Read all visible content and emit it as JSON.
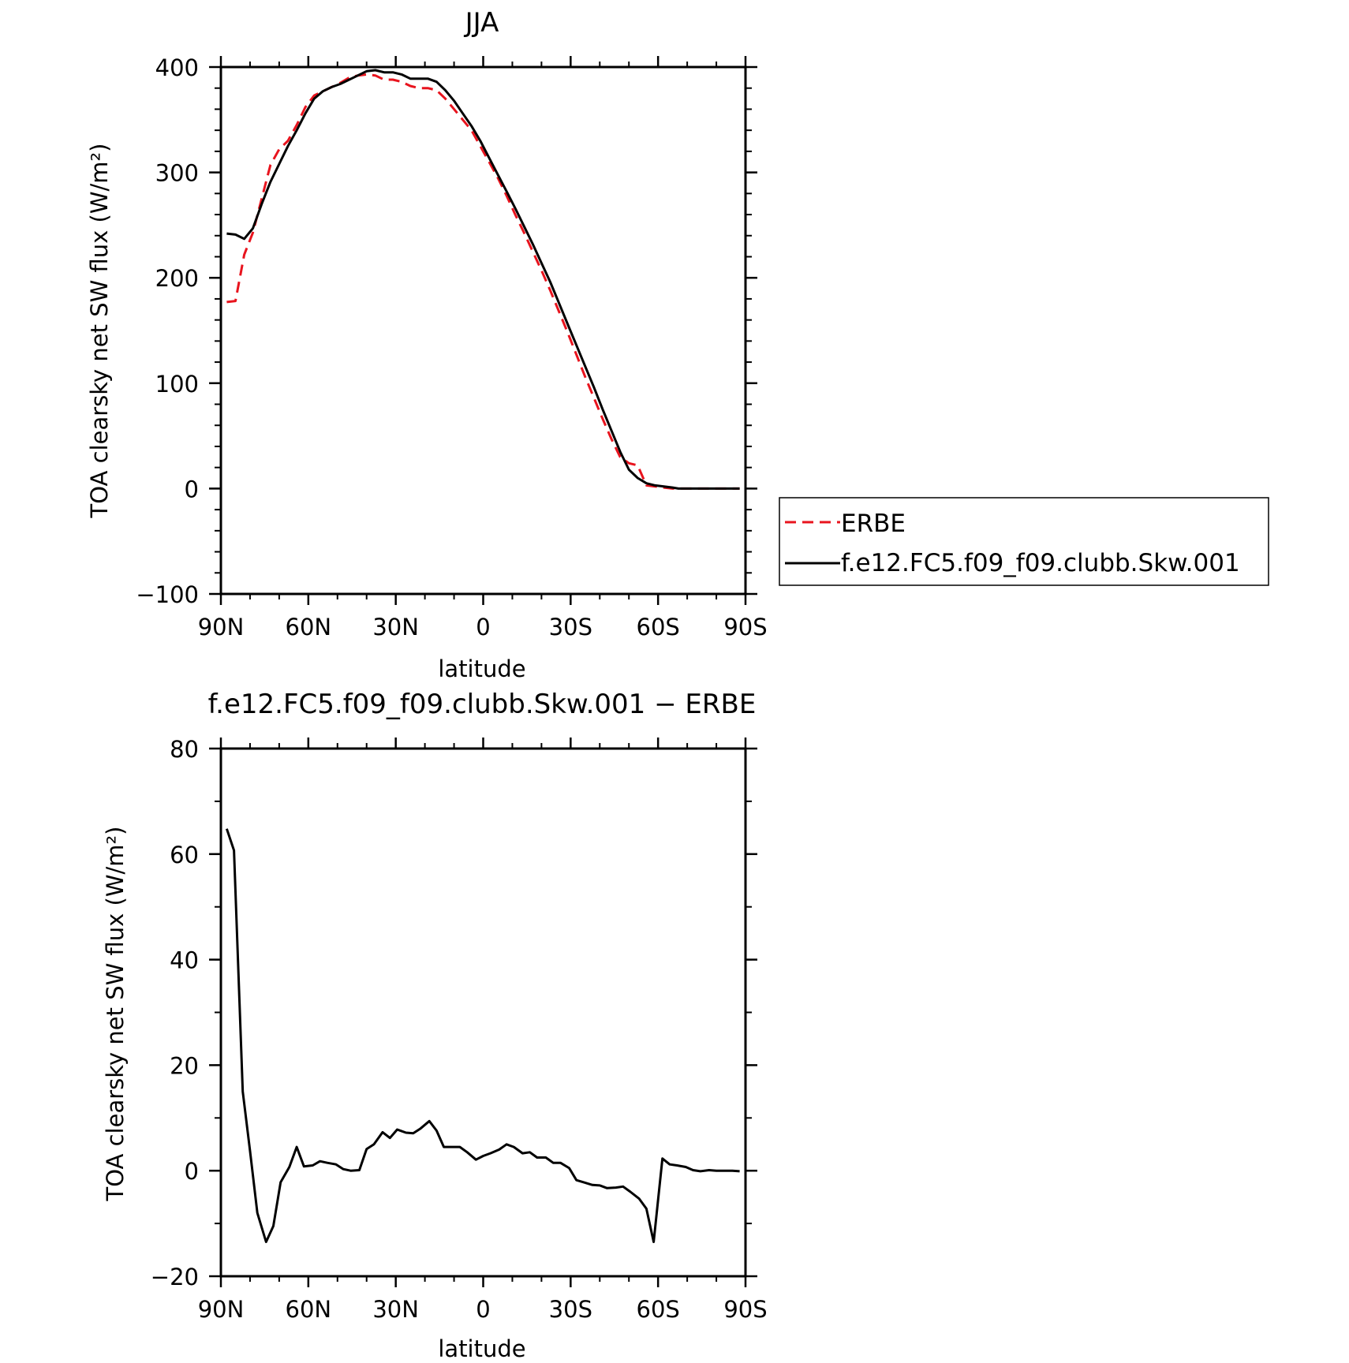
{
  "chart_data": [
    {
      "type": "line",
      "title": "JJA",
      "xlabel": "latitude",
      "ylabel": "TOA clearsky net SW flux (W/m²)",
      "xlim": [
        90,
        -90
      ],
      "ylim": [
        -100,
        400
      ],
      "xticks": [
        90,
        60,
        30,
        0,
        -30,
        -60,
        -90
      ],
      "xticklabels": [
        "90N",
        "60N",
        "30N",
        "0",
        "30S",
        "60S",
        "90S"
      ],
      "yticks": [
        -100,
        0,
        100,
        200,
        300,
        400
      ],
      "yticklabels": [
        "−100",
        "0",
        "100",
        "200",
        "300",
        "400"
      ],
      "legend": "right",
      "series": [
        {
          "name": "ERBE",
          "color": "#e8141e",
          "dash": true,
          "x": [
            88,
            85,
            82,
            79,
            76,
            73,
            70,
            67,
            64,
            61,
            58,
            55,
            52,
            49,
            46,
            43,
            40,
            37,
            34,
            31,
            28,
            25,
            22,
            19,
            16,
            13,
            10,
            7,
            4,
            1,
            -2,
            -5,
            -8,
            -11,
            -14,
            -17,
            -20,
            -23,
            -26,
            -29,
            -32,
            -35,
            -38,
            -41,
            -44,
            -47,
            -50,
            -53,
            -56,
            -59,
            -62,
            -65,
            -67,
            -68,
            -70,
            -73,
            -76,
            -79,
            -82,
            -85,
            -88
          ],
          "y": [
            177,
            178,
            222,
            243,
            275,
            307,
            322,
            330,
            345,
            362,
            373,
            377,
            381,
            385,
            390,
            392,
            393,
            392,
            388,
            388,
            386,
            382,
            380,
            380,
            378,
            370,
            360,
            350,
            340,
            325,
            310,
            295,
            278,
            260,
            243,
            225,
            207,
            188,
            168,
            148,
            127,
            106,
            86,
            66,
            47,
            30,
            24,
            22,
            3,
            2,
            1,
            0,
            0,
            0,
            0,
            0,
            0,
            0,
            0,
            0,
            0
          ],
          "_note": "x values above are placeholders"
        }
      ]
    },
    {
      "type": "line",
      "title": "f.e12.FC5.f09_f09.clubb.Skw.001 − ERBE",
      "xlabel": "latitude",
      "ylabel": "TOA clearsky net SW flux (W/m²)",
      "xlim": [
        90,
        -90
      ],
      "ylim": [
        -20,
        80
      ],
      "xticks": [
        90,
        60,
        30,
        0,
        -30,
        -60,
        -90
      ],
      "xticklabels": [
        "90N",
        "60N",
        "30N",
        "0",
        "30S",
        "60S",
        "90S"
      ],
      "yticks": [
        -20,
        0,
        20,
        40,
        60,
        80
      ],
      "yticklabels": [
        "−20",
        "0",
        "20",
        "40",
        "60",
        "80"
      ],
      "series": [
        {
          "name": "",
          "color": "#000000",
          "dash": false,
          "x": [
            88.0,
            85.5,
            82.5,
            80.0,
            77.5,
            74.5,
            72.0,
            69.5,
            66.5,
            64.0,
            61.5,
            58.5,
            56.0,
            53.5,
            50.5,
            48.0,
            45.5,
            42.5,
            40.0,
            37.5,
            34.5,
            32.0,
            29.5,
            26.5,
            24.0,
            21.5,
            18.5,
            16.0,
            13.5,
            10.5,
            8.0,
            5.5,
            2.5,
            0.0,
            -2.5,
            -5.5,
            -8.0,
            -10.5,
            -13.5,
            -16.0,
            -18.5,
            -21.5,
            -24.0,
            -26.5,
            -29.5,
            -32.0,
            -34.5,
            -37.5,
            -40.0,
            -42.5,
            -45.5,
            -48.0,
            -50.5,
            -53.5,
            -56.0,
            -58.5,
            -61.5,
            -64.0,
            -66.5,
            -69.5,
            -72.0,
            -74.5,
            -77.5,
            -80.0,
            -82.5,
            -85.5,
            -88.0
          ],
          "y": [
            64.8,
            60.7,
            15.0,
            3.8,
            -8.0,
            -13.5,
            -10.5,
            -2.2,
            0.7,
            4.5,
            0.8,
            1.0,
            1.8,
            1.5,
            1.2,
            0.3,
            0.0,
            0.1,
            4.1,
            5.0,
            7.3,
            6.2,
            7.8,
            7.2,
            7.1,
            8.0,
            9.4,
            7.6,
            4.5,
            4.5,
            4.5,
            3.5,
            2.1,
            2.8,
            3.3,
            4.0,
            5.0,
            4.5,
            3.3,
            3.5,
            2.5,
            2.5,
            1.5,
            1.5,
            0.5,
            -1.8,
            -2.2,
            -2.7,
            -2.8,
            -3.3,
            -3.2,
            -3.0,
            -4.0,
            -5.3,
            -7.2,
            -13.5,
            2.3,
            1.2,
            1.0,
            0.7,
            0.1,
            -0.1,
            0.1,
            0.0,
            0.0,
            0.0,
            -0.1
          ]
        }
      ]
    }
  ]
}
